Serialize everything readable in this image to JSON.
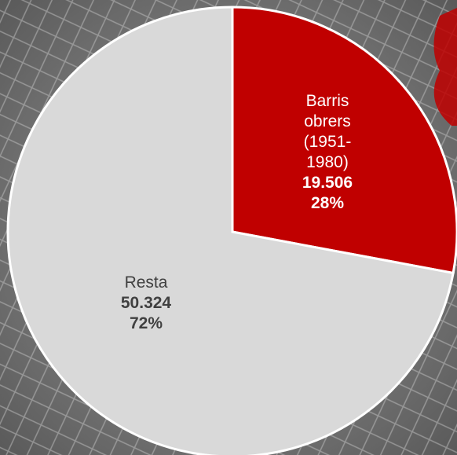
{
  "chart_data": {
    "type": "pie",
    "categories": [
      "Barris obrers (1951-1980)",
      "Resta"
    ],
    "values": [
      19506,
      50324
    ],
    "value_labels": [
      "19.506",
      "50.324"
    ],
    "percentages": [
      28,
      72
    ],
    "percentage_labels": [
      "28%",
      "72%"
    ],
    "colors": [
      "#c00000",
      "#d9d9d9"
    ],
    "text_colors": [
      "#ffffff",
      "#404040"
    ]
  }
}
